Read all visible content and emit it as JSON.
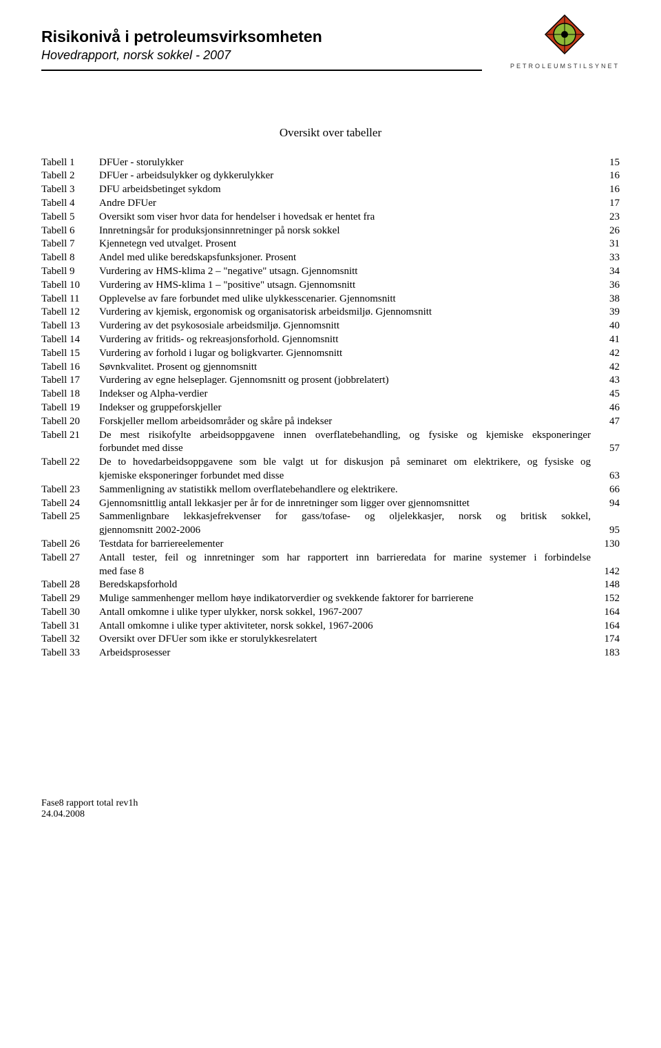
{
  "header": {
    "title": "Risikonivå i petroleumsvirksomheten",
    "subtitle": "Hovedrapport, norsk sokkel - 2007",
    "org_name": "PETROLEUMSTILSYNET",
    "logo": {
      "outer_fill": "#c43c1a",
      "inner_fill": "#8fb837",
      "center_fill": "#000000",
      "stroke": "#000000"
    }
  },
  "section_title": "Oversikt over tabeller",
  "toc": [
    {
      "label": "Tabell 1",
      "desc": "DFUer - storulykker",
      "page": "15"
    },
    {
      "label": "Tabell 2",
      "desc": "DFUer - arbeidsulykker og dykkerulykker",
      "page": "16"
    },
    {
      "label": "Tabell 3",
      "desc": "DFU arbeidsbetinget sykdom",
      "page": "16"
    },
    {
      "label": "Tabell 4",
      "desc": "Andre DFUer",
      "page": "17"
    },
    {
      "label": "Tabell 5",
      "desc": "Oversikt som viser hvor data for hendelser i hovedsak er hentet fra",
      "page": "23"
    },
    {
      "label": "Tabell 6",
      "desc": "Innretningsår for produksjonsinnretninger på norsk sokkel",
      "page": "26"
    },
    {
      "label": "Tabell 7",
      "desc": "Kjennetegn ved utvalget. Prosent",
      "page": "31"
    },
    {
      "label": "Tabell 8",
      "desc": "Andel med ulike beredskapsfunksjoner. Prosent",
      "page": "33"
    },
    {
      "label": "Tabell 9",
      "desc": "Vurdering av HMS-klima 2 – \"negative\" utsagn. Gjennomsnitt",
      "page": "34"
    },
    {
      "label": "Tabell 10",
      "desc": "Vurdering av HMS-klima 1 – \"positive\" utsagn. Gjennomsnitt",
      "page": "36"
    },
    {
      "label": "Tabell 11",
      "desc": "Opplevelse av fare forbundet med ulike ulykkesscenarier. Gjennomsnitt",
      "page": "38"
    },
    {
      "label": "Tabell 12",
      "desc": "Vurdering av kjemisk, ergonomisk og organisatorisk arbeidsmiljø. Gjennomsnitt",
      "page": "39"
    },
    {
      "label": "Tabell 13",
      "desc": "Vurdering av det psykososiale arbeidsmiljø. Gjennomsnitt",
      "page": "40"
    },
    {
      "label": "Tabell 14",
      "desc": "Vurdering av fritids- og rekreasjonsforhold. Gjennomsnitt",
      "page": "41"
    },
    {
      "label": "Tabell 15",
      "desc": "Vurdering av forhold i lugar og boligkvarter. Gjennomsnitt",
      "page": "42"
    },
    {
      "label": "Tabell 16",
      "desc": "Søvnkvalitet. Prosent og gjennomsnitt",
      "page": "42"
    },
    {
      "label": "Tabell 17",
      "desc": "Vurdering av egne helseplager. Gjennomsnitt og prosent (jobbrelatert)",
      "page": "43"
    },
    {
      "label": "Tabell 18",
      "desc": "Indekser og Alpha-verdier",
      "page": "45"
    },
    {
      "label": "Tabell 19",
      "desc": "Indekser og gruppeforskjeller",
      "page": "46"
    },
    {
      "label": "Tabell 20",
      "desc": "Forskjeller mellom arbeidsområder og skåre på indekser",
      "page": "47"
    },
    {
      "label": "Tabell 21",
      "multi": true,
      "line1": "De mest risikofylte arbeidsoppgavene innen overflatebehandling, og fysiske og kjemiske eksponeringer",
      "line2": "forbundet med disse",
      "page": "57"
    },
    {
      "label": "Tabell 22",
      "multi": true,
      "line1": "De to hovedarbeidsoppgavene som ble valgt ut for diskusjon på seminaret om elektrikere, og fysiske og",
      "line2": "kjemiske eksponeringer forbundet med disse",
      "page": "63"
    },
    {
      "label": "Tabell 23",
      "desc": "Sammenligning av statistikk mellom overflatebehandlere og elektrikere.",
      "page": "66"
    },
    {
      "label": "Tabell 24",
      "desc": "Gjennomsnittlig antall lekkasjer per år for de innretninger som ligger over gjennomsnittet",
      "page": "94"
    },
    {
      "label": "Tabell 25",
      "multi": true,
      "line1": "Sammenlignbare lekkasjefrekvenser for gass/tofase- og oljelekkasjer, norsk og britisk sokkel,",
      "line2": "gjennomsnitt 2002-2006",
      "page": "95"
    },
    {
      "label": "Tabell 26",
      "desc": "Testdata for barriereelementer",
      "page": "130"
    },
    {
      "label": "Tabell 27",
      "multi": true,
      "line1": "Antall tester, feil og innretninger som har rapportert inn barrieredata for marine systemer i forbindelse",
      "line2": "med fase 8",
      "page": "142"
    },
    {
      "label": "Tabell 28",
      "desc": "Beredskapsforhold",
      "page": "148"
    },
    {
      "label": "Tabell 29",
      "desc": "Mulige sammenhenger mellom høye indikatorverdier og svekkende faktorer for barrierene",
      "page": "152"
    },
    {
      "label": "Tabell 30",
      "desc": "Antall omkomne i ulike typer ulykker, norsk sokkel, 1967-2007",
      "page": "164"
    },
    {
      "label": "Tabell 31",
      "desc": "Antall omkomne i ulike typer aktiviteter, norsk sokkel, 1967-2006",
      "page": "164"
    },
    {
      "label": "Tabell 32",
      "desc": "Oversikt over DFUer som ikke er storulykkesrelatert",
      "page": "174"
    },
    {
      "label": "Tabell 33",
      "desc": "Arbeidsprosesser",
      "page": "183"
    }
  ],
  "footer": {
    "line1": "Fase8 rapport total rev1h",
    "line2": "24.04.2008"
  }
}
